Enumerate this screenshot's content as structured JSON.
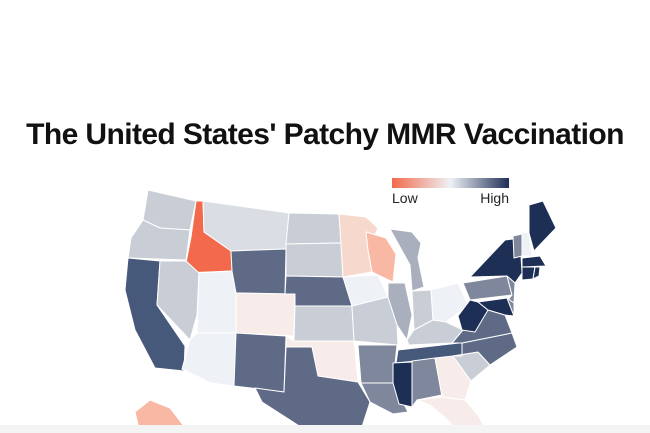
{
  "title": "The United States' Patchy MMR Vaccination",
  "legend": {
    "low_label": "Low",
    "high_label": "High",
    "low_color": "#f26a4b",
    "mid_color": "#eef1f6",
    "high_color": "#1e2f56"
  },
  "colors": {
    "orange": "#f26a4b",
    "salmon": "#f9b8a3",
    "pink": "#f7d8cd",
    "blush": "#f8ecea",
    "offwhite": "#eef1f6",
    "lightgray": "#dadde3",
    "palegray": "#c9cdd6",
    "gray": "#a9afbd",
    "slate": "#7e879b",
    "blue": "#5f6b86",
    "steel": "#46597a",
    "navy": "#1e2f56"
  }
}
